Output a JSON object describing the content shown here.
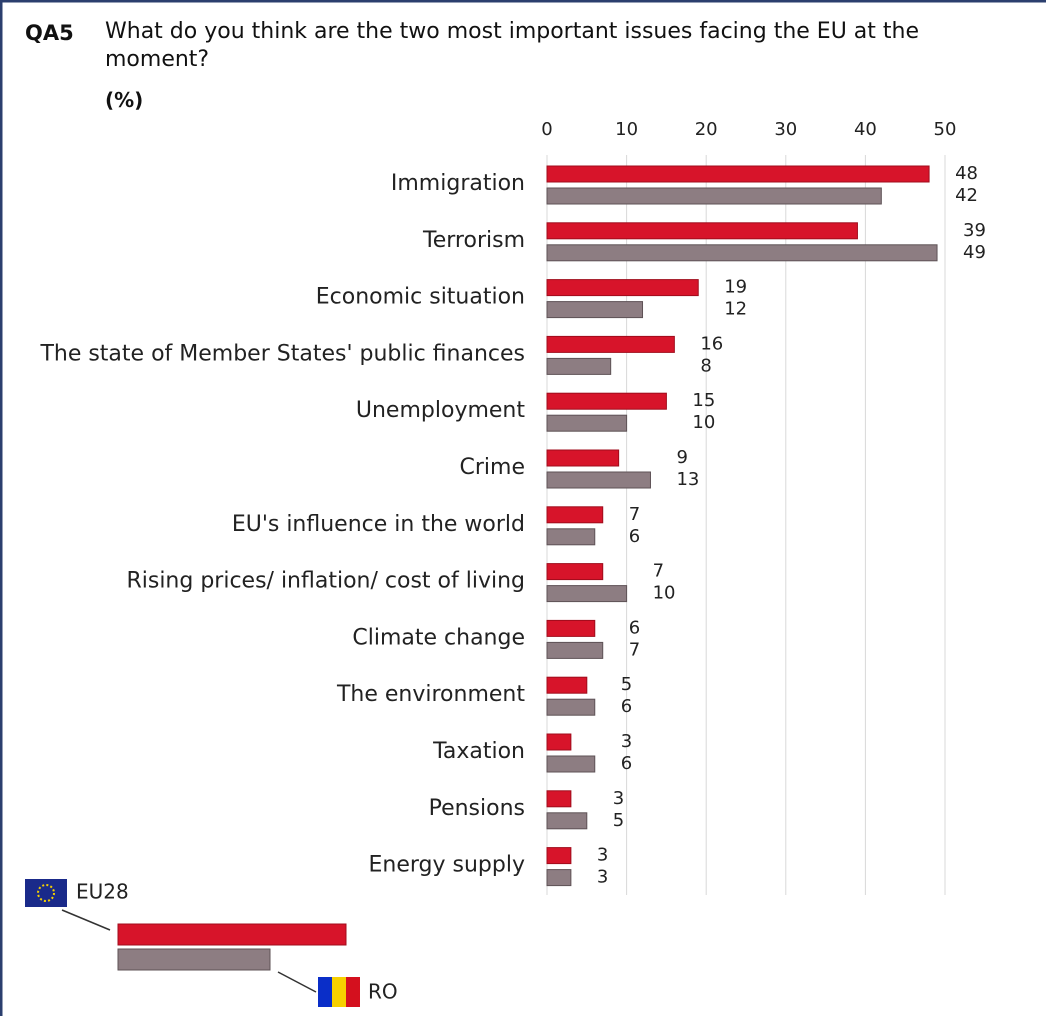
{
  "chart_data": {
    "type": "hbar",
    "question_id": "QA5",
    "title": "What do you think are the two most important issues facing the EU at the moment?",
    "subtitle": "(%)",
    "categories": [
      "Immigration",
      "Terrorism",
      "Economic situation",
      "The state of Member States' public finances",
      "Unemployment",
      "Crime",
      "EU's influence in the world",
      "Rising prices/ inflation/ cost of living",
      "Climate change",
      "The environment",
      "Taxation",
      "Pensions",
      "Energy supply"
    ],
    "series": [
      {
        "name": "EU28",
        "color": "#d7142a",
        "values": [
          48,
          39,
          19,
          16,
          15,
          9,
          7,
          7,
          6,
          5,
          3,
          3,
          3
        ]
      },
      {
        "name": "RO",
        "color": "#8d7d82",
        "values": [
          42,
          49,
          12,
          8,
          10,
          13,
          6,
          10,
          7,
          6,
          6,
          5,
          3
        ]
      }
    ],
    "xlim": [
      0,
      50
    ],
    "xticks": [
      0,
      10,
      20,
      30,
      40,
      50
    ],
    "grid": true
  }
}
